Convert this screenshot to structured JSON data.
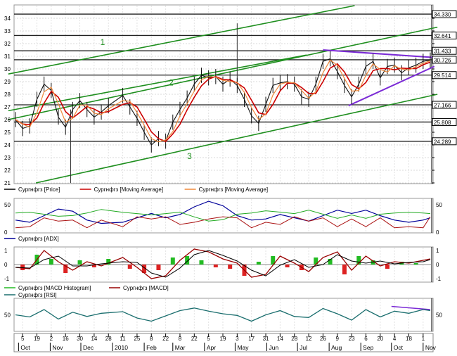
{
  "chart_data": {
    "type": "line",
    "price_panel": {
      "type": "line",
      "ylim": [
        21,
        35
      ],
      "y_ticks": [
        21,
        22,
        23,
        24,
        25,
        26,
        27,
        28,
        29,
        30,
        31,
        32,
        33,
        34
      ],
      "grid": true,
      "price_flags": [
        {
          "label": "34.330",
          "value": 34.33
        },
        {
          "label": "32.641",
          "value": 32.641
        },
        {
          "label": "31.433",
          "value": 31.433
        },
        {
          "label": "30.726",
          "value": 30.726
        },
        {
          "label": "29.514",
          "value": 29.514
        },
        {
          "label": "27.166",
          "value": 27.166
        },
        {
          "label": "25.808",
          "value": 25.808
        },
        {
          "label": "24.289",
          "value": 24.289
        }
      ],
      "channel_labels": [
        "1",
        "2",
        "3"
      ],
      "legend": [
        {
          "label": "Сургнфгз [Price]",
          "color": "#000000"
        },
        {
          "label": "Сургнфгз [Moving Average]",
          "color": "#cc0000"
        },
        {
          "label": "Сургнфгз [Moving Average]",
          "color": "#f08a3c"
        }
      ],
      "price_series": [
        {
          "x": "2009-09-28",
          "y": 26.0
        },
        {
          "x": "2009-10-05",
          "y": 25.3
        },
        {
          "x": "2009-10-12",
          "y": 25.5
        },
        {
          "x": "2009-10-19",
          "y": 27.6
        },
        {
          "x": "2009-10-26",
          "y": 28.8
        },
        {
          "x": "2009-11-02",
          "y": 28.3
        },
        {
          "x": "2009-11-09",
          "y": 26.2
        },
        {
          "x": "2009-11-16",
          "y": 25.4
        },
        {
          "x": "2009-11-23",
          "y": 26.8
        },
        {
          "x": "2009-11-30",
          "y": 27.5
        },
        {
          "x": "2009-12-07",
          "y": 26.8
        },
        {
          "x": "2009-12-14",
          "y": 26.2
        },
        {
          "x": "2009-12-21",
          "y": 26.6
        },
        {
          "x": "2009-12-28",
          "y": 27.1
        },
        {
          "x": "2010-01-11",
          "y": 27.9
        },
        {
          "x": "2010-01-18",
          "y": 27.0
        },
        {
          "x": "2010-01-25",
          "y": 26.1
        },
        {
          "x": "2010-02-01",
          "y": 25.0
        },
        {
          "x": "2010-02-08",
          "y": 24.0
        },
        {
          "x": "2010-02-15",
          "y": 24.5
        },
        {
          "x": "2010-02-22",
          "y": 24.3
        },
        {
          "x": "2010-03-01",
          "y": 25.8
        },
        {
          "x": "2010-03-08",
          "y": 26.8
        },
        {
          "x": "2010-03-15",
          "y": 27.7
        },
        {
          "x": "2010-03-22",
          "y": 28.8
        },
        {
          "x": "2010-03-29",
          "y": 29.5
        },
        {
          "x": "2010-04-05",
          "y": 29.3
        },
        {
          "x": "2010-04-12",
          "y": 29.4
        },
        {
          "x": "2010-04-19",
          "y": 28.8
        },
        {
          "x": "2010-04-26",
          "y": 29.2
        },
        {
          "x": "2010-05-03",
          "y": 28.7
        },
        {
          "x": "2010-05-10",
          "y": 27.6
        },
        {
          "x": "2010-05-17",
          "y": 26.3
        },
        {
          "x": "2010-05-24",
          "y": 25.7
        },
        {
          "x": "2010-05-31",
          "y": 27.2
        },
        {
          "x": "2010-06-07",
          "y": 28.7
        },
        {
          "x": "2010-06-14",
          "y": 28.9
        },
        {
          "x": "2010-06-21",
          "y": 29.0
        },
        {
          "x": "2010-06-28",
          "y": 28.8
        },
        {
          "x": "2010-07-05",
          "y": 27.8
        },
        {
          "x": "2010-07-12",
          "y": 27.6
        },
        {
          "x": "2010-07-19",
          "y": 28.8
        },
        {
          "x": "2010-07-26",
          "y": 30.6
        },
        {
          "x": "2010-08-02",
          "y": 30.8
        },
        {
          "x": "2010-08-09",
          "y": 29.8
        },
        {
          "x": "2010-08-16",
          "y": 28.7
        },
        {
          "x": "2010-08-23",
          "y": 27.8
        },
        {
          "x": "2010-08-30",
          "y": 28.8
        },
        {
          "x": "2010-09-06",
          "y": 30.2
        },
        {
          "x": "2010-09-13",
          "y": 30.6
        },
        {
          "x": "2010-09-20",
          "y": 29.3
        },
        {
          "x": "2010-09-27",
          "y": 30.2
        },
        {
          "x": "2010-10-04",
          "y": 30.3
        },
        {
          "x": "2010-10-11",
          "y": 29.7
        },
        {
          "x": "2010-10-18",
          "y": 30.1
        },
        {
          "x": "2010-10-25",
          "y": 30.3
        },
        {
          "x": "2010-11-01",
          "y": 30.6
        },
        {
          "x": "2010-11-08",
          "y": 30.7
        }
      ],
      "spikes": [
        {
          "x": "2009-11-21",
          "low": 21.0
        },
        {
          "x": "2010-05-03",
          "high": 33.6
        }
      ]
    },
    "adx_panel": {
      "type": "line",
      "ylim": [
        0,
        60
      ],
      "y_ticks": [
        0,
        50
      ],
      "legend": [
        {
          "label": "Сургнфгз [ADX]",
          "color": "#000099"
        }
      ],
      "adx_series": [
        {
          "x": "2009-09-28",
          "y": 22
        },
        {
          "x": "2009-10-12",
          "y": 18
        },
        {
          "x": "2009-10-26",
          "y": 30
        },
        {
          "x": "2009-11-09",
          "y": 42
        },
        {
          "x": "2009-11-23",
          "y": 38
        },
        {
          "x": "2009-12-07",
          "y": 22
        },
        {
          "x": "2009-12-21",
          "y": 16
        },
        {
          "x": "2010-01-11",
          "y": 18
        },
        {
          "x": "2010-01-25",
          "y": 26
        },
        {
          "x": "2010-02-08",
          "y": 34
        },
        {
          "x": "2010-02-22",
          "y": 26
        },
        {
          "x": "2010-03-08",
          "y": 32
        },
        {
          "x": "2010-03-22",
          "y": 46
        },
        {
          "x": "2010-04-05",
          "y": 56
        },
        {
          "x": "2010-04-19",
          "y": 48
        },
        {
          "x": "2010-05-03",
          "y": 30
        },
        {
          "x": "2010-05-17",
          "y": 22
        },
        {
          "x": "2010-05-31",
          "y": 24
        },
        {
          "x": "2010-06-14",
          "y": 32
        },
        {
          "x": "2010-06-28",
          "y": 26
        },
        {
          "x": "2010-07-12",
          "y": 20
        },
        {
          "x": "2010-07-26",
          "y": 30
        },
        {
          "x": "2010-08-09",
          "y": 40
        },
        {
          "x": "2010-08-23",
          "y": 34
        },
        {
          "x": "2010-09-06",
          "y": 40
        },
        {
          "x": "2010-09-20",
          "y": 30
        },
        {
          "x": "2010-10-04",
          "y": 22
        },
        {
          "x": "2010-10-18",
          "y": 18
        },
        {
          "x": "2010-11-01",
          "y": 22
        },
        {
          "x": "2010-11-08",
          "y": 26
        }
      ]
    },
    "macd_panel": {
      "type": "bar",
      "ylim": [
        -1.2,
        1.2
      ],
      "y_ticks": [
        -1,
        0,
        1
      ],
      "legend": [
        {
          "label": "Сургнфгз [MACD Histogram]",
          "color": "#22bb22"
        },
        {
          "label": "Сургнфгз [MACD]",
          "color": "#990000"
        }
      ],
      "macd_series": [
        {
          "x": "2009-09-28",
          "y": -0.2
        },
        {
          "x": "2009-10-12",
          "y": -0.3
        },
        {
          "x": "2009-10-26",
          "y": 1.0
        },
        {
          "x": "2009-11-09",
          "y": 0.2
        },
        {
          "x": "2009-11-23",
          "y": -0.4
        },
        {
          "x": "2009-12-07",
          "y": 0.2
        },
        {
          "x": "2009-12-21",
          "y": -0.1
        },
        {
          "x": "2010-01-11",
          "y": 0.5
        },
        {
          "x": "2010-01-25",
          "y": -0.2
        },
        {
          "x": "2010-02-08",
          "y": -1.0
        },
        {
          "x": "2010-02-22",
          "y": -0.8
        },
        {
          "x": "2010-03-08",
          "y": 0.3
        },
        {
          "x": "2010-03-22",
          "y": 1.1
        },
        {
          "x": "2010-04-05",
          "y": 0.9
        },
        {
          "x": "2010-04-19",
          "y": 0.4
        },
        {
          "x": "2010-05-03",
          "y": 0.1
        },
        {
          "x": "2010-05-17",
          "y": -0.9
        },
        {
          "x": "2010-05-31",
          "y": -0.7
        },
        {
          "x": "2010-06-14",
          "y": 0.6
        },
        {
          "x": "2010-06-28",
          "y": 0.1
        },
        {
          "x": "2010-07-12",
          "y": -0.5
        },
        {
          "x": "2010-07-26",
          "y": 0.5
        },
        {
          "x": "2010-08-09",
          "y": 0.9
        },
        {
          "x": "2010-08-23",
          "y": -0.4
        },
        {
          "x": "2010-09-06",
          "y": 0.6
        },
        {
          "x": "2010-09-20",
          "y": -0.1
        },
        {
          "x": "2010-10-04",
          "y": 0.2
        },
        {
          "x": "2010-10-18",
          "y": 0.1
        },
        {
          "x": "2010-11-01",
          "y": 0.3
        },
        {
          "x": "2010-11-08",
          "y": 0.4
        }
      ],
      "histogram": [
        {
          "x": "2009-10-05",
          "y": -0.4
        },
        {
          "x": "2009-10-19",
          "y": 0.7
        },
        {
          "x": "2009-11-02",
          "y": 0.4
        },
        {
          "x": "2009-11-16",
          "y": -0.6
        },
        {
          "x": "2009-11-30",
          "y": 0.3
        },
        {
          "x": "2009-12-14",
          "y": -0.2
        },
        {
          "x": "2009-12-28",
          "y": 0.4
        },
        {
          "x": "2010-01-18",
          "y": -0.3
        },
        {
          "x": "2010-02-01",
          "y": -0.6
        },
        {
          "x": "2010-02-15",
          "y": -0.4
        },
        {
          "x": "2010-03-01",
          "y": 0.5
        },
        {
          "x": "2010-03-15",
          "y": 0.6
        },
        {
          "x": "2010-03-29",
          "y": 0.3
        },
        {
          "x": "2010-04-12",
          "y": -0.2
        },
        {
          "x": "2010-04-26",
          "y": -0.3
        },
        {
          "x": "2010-05-10",
          "y": -0.8
        },
        {
          "x": "2010-05-24",
          "y": 0.2
        },
        {
          "x": "2010-06-07",
          "y": 0.6
        },
        {
          "x": "2010-06-21",
          "y": -0.2
        },
        {
          "x": "2010-07-05",
          "y": -0.4
        },
        {
          "x": "2010-07-19",
          "y": 0.5
        },
        {
          "x": "2010-08-02",
          "y": 0.4
        },
        {
          "x": "2010-08-16",
          "y": -0.7
        },
        {
          "x": "2010-08-30",
          "y": 0.6
        },
        {
          "x": "2010-09-13",
          "y": 0.3
        },
        {
          "x": "2010-09-27",
          "y": -0.3
        },
        {
          "x": "2010-10-11",
          "y": 0.2
        },
        {
          "x": "2010-10-25",
          "y": 0.1
        }
      ]
    },
    "rsi_panel": {
      "type": "line",
      "ylim": [
        20,
        80
      ],
      "y_ticks": [
        50
      ],
      "legend": [
        {
          "label": "Сургнфгз [RSI]",
          "color": "#1a6e6e"
        }
      ],
      "rsi_series": [
        {
          "x": "2009-09-28",
          "y": 50
        },
        {
          "x": "2009-10-12",
          "y": 46
        },
        {
          "x": "2009-10-26",
          "y": 60
        },
        {
          "x": "2009-11-09",
          "y": 42
        },
        {
          "x": "2009-11-23",
          "y": 55
        },
        {
          "x": "2009-12-07",
          "y": 47
        },
        {
          "x": "2009-12-21",
          "y": 53
        },
        {
          "x": "2010-01-11",
          "y": 56
        },
        {
          "x": "2010-01-25",
          "y": 44
        },
        {
          "x": "2010-02-08",
          "y": 38
        },
        {
          "x": "2010-02-22",
          "y": 48
        },
        {
          "x": "2010-03-08",
          "y": 58
        },
        {
          "x": "2010-03-22",
          "y": 63
        },
        {
          "x": "2010-04-05",
          "y": 57
        },
        {
          "x": "2010-04-19",
          "y": 52
        },
        {
          "x": "2010-05-03",
          "y": 49
        },
        {
          "x": "2010-05-17",
          "y": 38
        },
        {
          "x": "2010-05-31",
          "y": 50
        },
        {
          "x": "2010-06-14",
          "y": 58
        },
        {
          "x": "2010-06-28",
          "y": 47
        },
        {
          "x": "2010-07-12",
          "y": 45
        },
        {
          "x": "2010-07-26",
          "y": 62
        },
        {
          "x": "2010-08-09",
          "y": 52
        },
        {
          "x": "2010-08-23",
          "y": 40
        },
        {
          "x": "2010-09-06",
          "y": 60
        },
        {
          "x": "2010-09-20",
          "y": 46
        },
        {
          "x": "2010-10-04",
          "y": 57
        },
        {
          "x": "2010-10-18",
          "y": 53
        },
        {
          "x": "2010-11-01",
          "y": 60
        },
        {
          "x": "2010-11-08",
          "y": 58
        }
      ]
    },
    "x_axis": {
      "range": [
        "2009-09-28",
        "2010-11-08"
      ],
      "day_labels": [
        {
          "x": "2009-10-05",
          "label": "5"
        },
        {
          "x": "2009-10-19",
          "label": "19"
        },
        {
          "x": "2009-11-02",
          "label": "2"
        },
        {
          "x": "2009-11-16",
          "label": "16"
        },
        {
          "x": "2009-11-30",
          "label": "30"
        },
        {
          "x": "2009-12-14",
          "label": "14"
        },
        {
          "x": "2009-12-28",
          "label": "28"
        },
        {
          "x": "2010-01-11",
          "label": "11"
        },
        {
          "x": "2010-01-25",
          "label": "25"
        },
        {
          "x": "2010-02-08",
          "label": "8"
        },
        {
          "x": "2010-02-22",
          "label": "22"
        },
        {
          "x": "2010-03-08",
          "label": "8"
        },
        {
          "x": "2010-03-22",
          "label": "22"
        },
        {
          "x": "2010-04-05",
          "label": "5"
        },
        {
          "x": "2010-04-19",
          "label": "19"
        },
        {
          "x": "2010-05-03",
          "label": "3"
        },
        {
          "x": "2010-05-17",
          "label": "17"
        },
        {
          "x": "2010-05-31",
          "label": "31"
        },
        {
          "x": "2010-06-14",
          "label": "14"
        },
        {
          "x": "2010-06-28",
          "label": "28"
        },
        {
          "x": "2010-07-12",
          "label": "12"
        },
        {
          "x": "2010-07-26",
          "label": "26"
        },
        {
          "x": "2010-08-09",
          "label": "9"
        },
        {
          "x": "2010-08-23",
          "label": "23"
        },
        {
          "x": "2010-09-06",
          "label": "6"
        },
        {
          "x": "2010-09-20",
          "label": "20"
        },
        {
          "x": "2010-10-04",
          "label": "4"
        },
        {
          "x": "2010-10-18",
          "label": "18"
        },
        {
          "x": "2010-11-01",
          "label": "1"
        }
      ],
      "month_labels": [
        {
          "x": "2009-10-01",
          "label": "Oct"
        },
        {
          "x": "2009-11-01",
          "label": "Nov"
        },
        {
          "x": "2009-12-01",
          "label": "Dec"
        },
        {
          "x": "2010-01-01",
          "label": "2010"
        },
        {
          "x": "2010-02-01",
          "label": "Feb"
        },
        {
          "x": "2010-03-01",
          "label": "Mar"
        },
        {
          "x": "2010-04-01",
          "label": "Apr"
        },
        {
          "x": "2010-05-01",
          "label": "May"
        },
        {
          "x": "2010-06-01",
          "label": "Jun"
        },
        {
          "x": "2010-07-01",
          "label": "Jul"
        },
        {
          "x": "2010-08-01",
          "label": "Aug"
        },
        {
          "x": "2010-09-01",
          "label": "Sep"
        },
        {
          "x": "2010-10-01",
          "label": "Oct"
        },
        {
          "x": "2010-11-01",
          "label": "Nov"
        }
      ]
    }
  }
}
